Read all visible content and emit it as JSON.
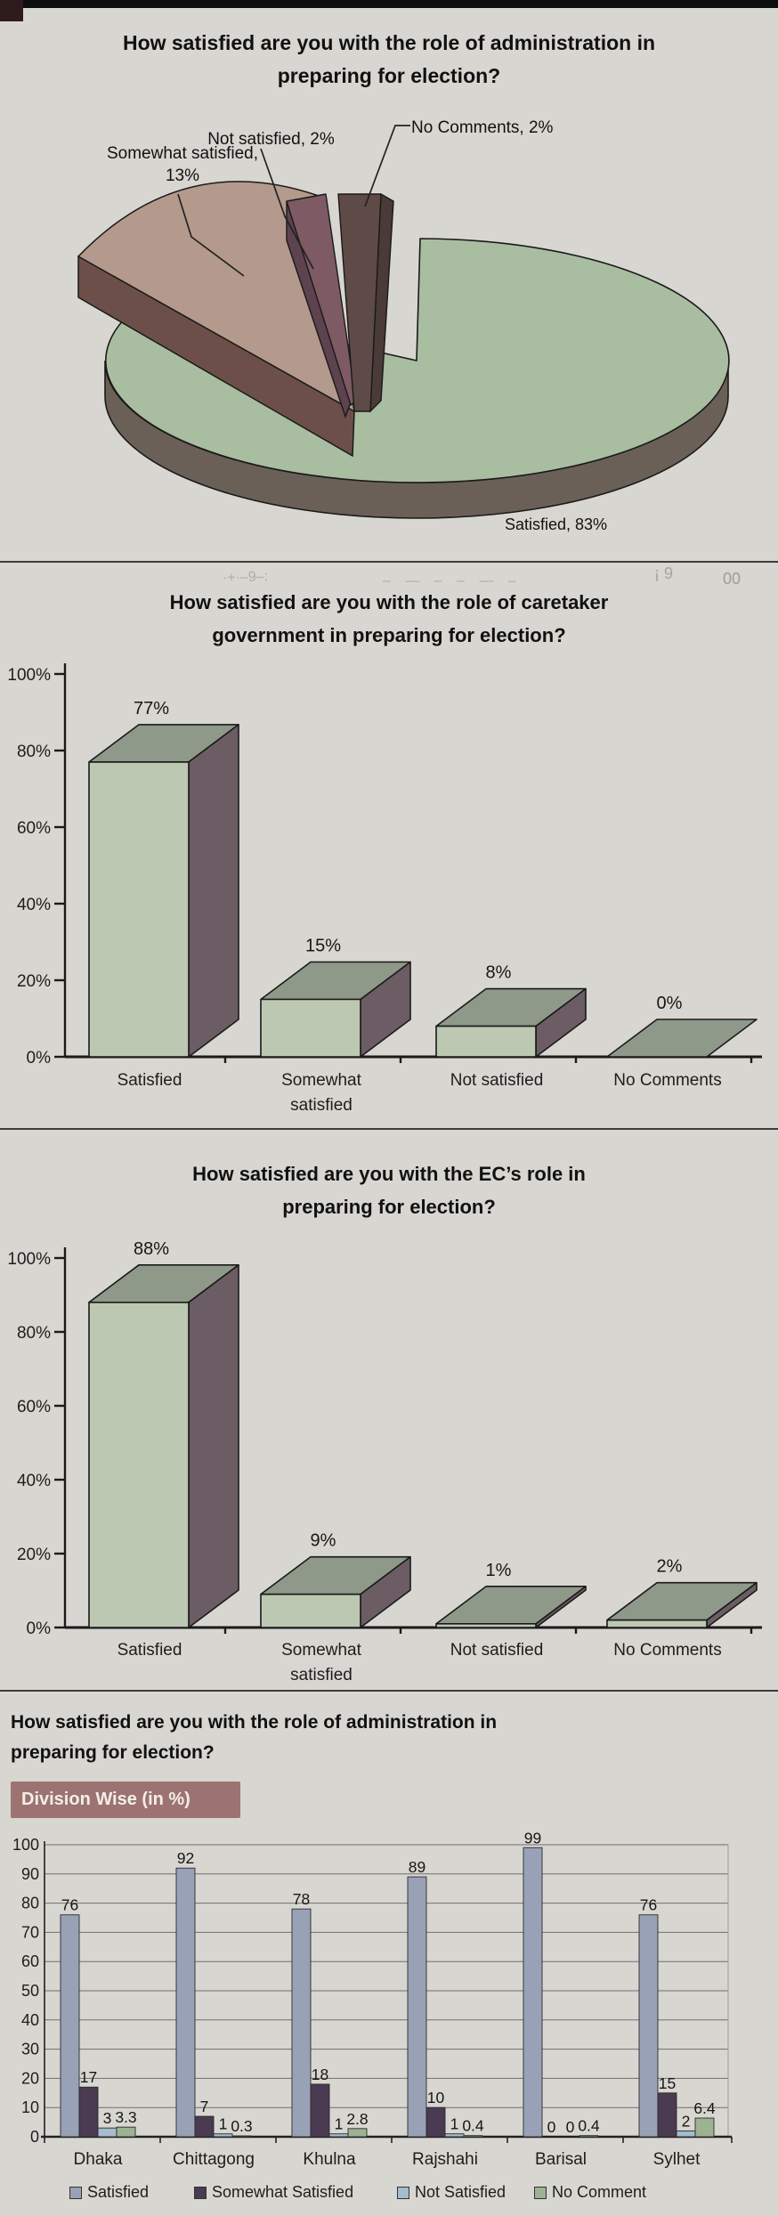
{
  "page_bg": "#d8d6d1",
  "artifacts": {
    "dashes": "–  —  –   –  ­—  –",
    "scribble": "·+·–9–:",
    "right_faint_1": "¡ 9",
    "right_faint_2": "00"
  },
  "legend_title": "Division Wise (in %)",
  "chart_data": [
    {
      "type": "pie",
      "title_lines": [
        "How satisfied are you with the role of administration in",
        "preparing for election?"
      ],
      "slices": [
        {
          "label": "Satisfied",
          "value": 83,
          "display": "Satisfied, 83%",
          "color_top": "#a9bda1",
          "color_side": "#6a6057"
        },
        {
          "label": "Somewhat satisfied",
          "value": 13,
          "display_lines": [
            "Somewhat satisfied,",
            "13%"
          ],
          "color_top": "#b49a8c",
          "color_side": "#6d4f4a"
        },
        {
          "label": "Not satisfied",
          "value": 2,
          "display": "Not satisfied, 2%",
          "color_top": "#7d5a64",
          "color_side": "#5c434e"
        },
        {
          "label": "No Comments",
          "value": 2,
          "display": "No Comments, 2%",
          "color_top": "#5e4a46",
          "color_side": "#4a3a38"
        }
      ]
    },
    {
      "type": "bar",
      "title_lines": [
        "How satisfied are you with the role of caretaker",
        "government in preparing for election?"
      ],
      "categories": [
        [
          "Satisfied"
        ],
        [
          "Somewhat",
          "satisfied"
        ],
        [
          "Not satisfied"
        ],
        [
          "No Comments"
        ]
      ],
      "values": [
        77,
        15,
        8,
        0
      ],
      "value_labels": [
        "77%",
        "15%",
        "8%",
        "0%"
      ],
      "y_ticks": [
        "100%",
        "80%",
        "60%",
        "40%",
        "20%",
        "0%"
      ],
      "ylim": [
        0,
        100
      ],
      "bar_front": "#bcc8b2",
      "bar_top": "#8f998a",
      "bar_side": "#6b5d63"
    },
    {
      "type": "bar",
      "title_lines": [
        "How satisfied are you with the EC’s role in",
        "preparing for election?"
      ],
      "categories": [
        [
          "Satisfied"
        ],
        [
          "Somewhat",
          "satisfied"
        ],
        [
          "Not satisfied"
        ],
        [
          "No Comments"
        ]
      ],
      "values": [
        88,
        9,
        1,
        2
      ],
      "value_labels": [
        "88%",
        "9%",
        "1%",
        "2%"
      ],
      "y_ticks": [
        "100%",
        "80%",
        "60%",
        "40%",
        "20%",
        "0%"
      ],
      "ylim": [
        0,
        100
      ],
      "bar_front": "#bcc8b2",
      "bar_top": "#8f998a",
      "bar_side": "#6b5d63"
    },
    {
      "type": "grouped_bar",
      "title_lines": [
        "How satisfied are you with the role of administration in",
        "preparing for election?"
      ],
      "tag": "Division Wise (in %)",
      "tag_bg": "#9c7370",
      "categories": [
        "Dhaka",
        "Chittagong",
        "Khulna",
        "Rajshahi",
        "Barisal",
        "Sylhet"
      ],
      "series": [
        {
          "name": "Satisfied",
          "color": "#99a1b6",
          "values": [
            76,
            92,
            78,
            89,
            99,
            76
          ]
        },
        {
          "name": "Somewhat Satisfied",
          "color": "#4a3a52",
          "values": [
            17,
            7,
            18,
            10,
            0,
            15
          ]
        },
        {
          "name": "Not Satisfied",
          "color": "#a4bccb",
          "values": [
            3,
            1,
            1,
            1,
            0,
            2
          ]
        },
        {
          "name": "No Comment",
          "color": "#9db193",
          "values": [
            3.3,
            0.3,
            2.8,
            0.4,
            0.4,
            6.4
          ]
        }
      ],
      "y_ticks": [
        "100",
        "90",
        "80",
        "70",
        "60",
        "50",
        "40",
        "30",
        "20",
        "10",
        "0"
      ],
      "ylim": [
        0,
        100
      ],
      "grid": true,
      "legend_position": "bottom"
    }
  ]
}
